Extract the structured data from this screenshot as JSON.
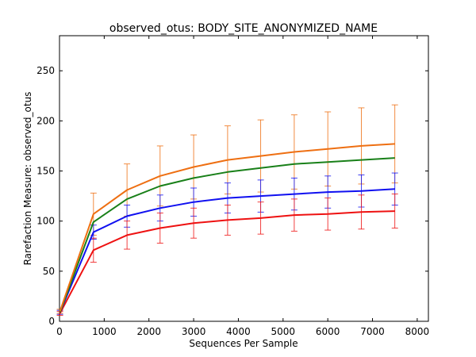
{
  "chart_data": {
    "type": "line",
    "title": "observed_otus: BODY_SITE_ANONYMIZED_NAME",
    "xlabel": "Sequences Per Sample",
    "ylabel": "Rarefaction Measure: observed_otus",
    "xlim": [
      0,
      8250
    ],
    "ylim": [
      0,
      285
    ],
    "xticks": [
      0,
      1000,
      2000,
      3000,
      4000,
      5000,
      6000,
      7000,
      8000
    ],
    "yticks": [
      0,
      50,
      100,
      150,
      200,
      250
    ],
    "grid": false,
    "x": [
      10,
      760,
      1510,
      2250,
      3000,
      3760,
      4500,
      5250,
      6000,
      6750,
      7500
    ],
    "series": [
      {
        "color": "#ee6f12",
        "values": [
          10,
          107,
          131,
          145,
          154,
          161,
          165,
          169,
          172,
          175,
          177
        ],
        "err": [
          2,
          21,
          26,
          30,
          32,
          34,
          36,
          37,
          37,
          38,
          39
        ]
      },
      {
        "color": "#198019",
        "values": [
          9,
          99,
          122,
          135,
          143,
          149,
          153,
          157,
          159,
          161,
          163
        ],
        "err": [
          0,
          0,
          0,
          0,
          0,
          0,
          0,
          0,
          0,
          0,
          0
        ]
      },
      {
        "color": "#1010f0",
        "values": [
          9,
          89,
          105,
          113,
          119,
          123,
          125,
          127,
          129,
          130,
          132
        ],
        "err": [
          2,
          7,
          11,
          13,
          14,
          15,
          16,
          16,
          16,
          16,
          16
        ]
      },
      {
        "color": "#ee1111",
        "values": [
          8,
          71,
          86,
          93,
          98,
          101,
          103,
          106,
          107,
          109,
          110
        ],
        "err": [
          2,
          12,
          14,
          15,
          15,
          15,
          16,
          16,
          16,
          17,
          17
        ]
      }
    ]
  }
}
